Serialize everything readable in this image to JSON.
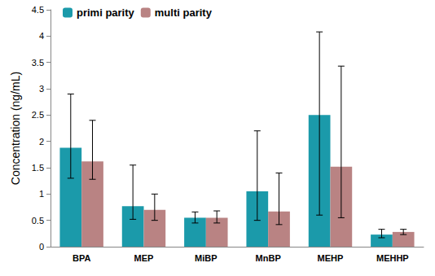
{
  "chart_data": {
    "type": "bar",
    "y_label": "Concentration (ng/mL)",
    "categories": [
      "BPA",
      "MEP",
      "MiBP",
      "MnBP",
      "MEHP",
      "MEHHP"
    ],
    "ylim": [
      0,
      4.5
    ],
    "yticks": [
      0,
      0.5,
      1,
      1.5,
      2,
      2.5,
      3,
      3.5,
      4,
      4.5
    ],
    "grid": false,
    "legend": "upper left",
    "series": [
      {
        "name": "primi parity",
        "color": "#1b9aaa",
        "values": [
          1.88,
          0.77,
          0.55,
          1.05,
          2.5,
          0.23
        ],
        "error_low": [
          1.3,
          0.52,
          0.45,
          0.5,
          0.6,
          0.17
        ],
        "error_high": [
          2.9,
          1.55,
          0.66,
          2.2,
          4.08,
          0.33
        ]
      },
      {
        "name": "multi parity",
        "color": "#b98383",
        "values": [
          1.62,
          0.7,
          0.55,
          0.67,
          1.52,
          0.28
        ],
        "error_low": [
          1.28,
          0.5,
          0.45,
          0.42,
          0.55,
          0.23
        ],
        "error_high": [
          2.4,
          1.0,
          0.68,
          1.4,
          3.43,
          0.33
        ]
      }
    ]
  }
}
